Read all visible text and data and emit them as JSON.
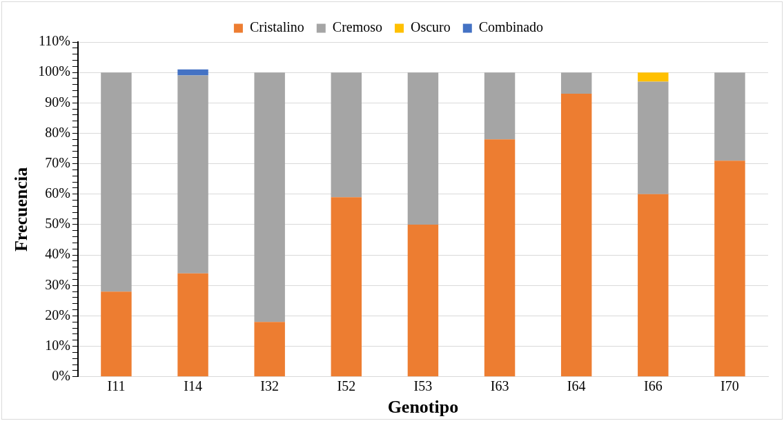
{
  "chart_data": {
    "type": "bar",
    "stacked": true,
    "xlabel": "Genotipo",
    "ylabel": "Frecuencia",
    "categories": [
      "I11",
      "I14",
      "I32",
      "I52",
      "I53",
      "I63",
      "I64",
      "I66",
      "I70"
    ],
    "series": [
      {
        "name": "Cristalino",
        "color": "#ed7d31",
        "values": [
          28,
          34,
          18,
          59,
          50,
          78,
          93,
          60,
          71
        ]
      },
      {
        "name": "Cremoso",
        "color": "#a5a5a5",
        "values": [
          72,
          65,
          82,
          41,
          50,
          22,
          7,
          37,
          29
        ]
      },
      {
        "name": "Oscuro",
        "color": "#ffc000",
        "values": [
          0,
          0,
          0,
          0,
          0,
          0,
          0,
          3,
          0
        ]
      },
      {
        "name": "Combinado",
        "color": "#4472c4",
        "values": [
          0,
          2,
          0,
          0,
          0,
          0,
          0,
          0,
          0
        ]
      }
    ],
    "ylim": [
      0,
      110
    ],
    "yticks": [
      {
        "value": 0,
        "label": "0%"
      },
      {
        "value": 2,
        "label": null
      },
      {
        "value": 4,
        "label": null
      },
      {
        "value": 6,
        "label": null
      },
      {
        "value": 8,
        "label": null
      },
      {
        "value": 10,
        "label": "10%"
      },
      {
        "value": 12,
        "label": null
      },
      {
        "value": 14,
        "label": null
      },
      {
        "value": 16,
        "label": null
      },
      {
        "value": 18,
        "label": null
      },
      {
        "value": 20,
        "label": "20%"
      },
      {
        "value": 22,
        "label": null
      },
      {
        "value": 24,
        "label": null
      },
      {
        "value": 26,
        "label": null
      },
      {
        "value": 28,
        "label": null
      },
      {
        "value": 30,
        "label": "30%"
      },
      {
        "value": 32,
        "label": null
      },
      {
        "value": 34,
        "label": null
      },
      {
        "value": 36,
        "label": null
      },
      {
        "value": 38,
        "label": null
      },
      {
        "value": 40,
        "label": "40%"
      },
      {
        "value": 42,
        "label": null
      },
      {
        "value": 44,
        "label": null
      },
      {
        "value": 46,
        "label": null
      },
      {
        "value": 48,
        "label": null
      },
      {
        "value": 50,
        "label": "50%"
      },
      {
        "value": 52,
        "label": null
      },
      {
        "value": 54,
        "label": null
      },
      {
        "value": 56,
        "label": null
      },
      {
        "value": 58,
        "label": null
      },
      {
        "value": 60,
        "label": "60%"
      },
      {
        "value": 62,
        "label": null
      },
      {
        "value": 64,
        "label": null
      },
      {
        "value": 66,
        "label": null
      },
      {
        "value": 68,
        "label": null
      },
      {
        "value": 70,
        "label": "70%"
      },
      {
        "value": 72,
        "label": null
      },
      {
        "value": 74,
        "label": null
      },
      {
        "value": 76,
        "label": null
      },
      {
        "value": 78,
        "label": null
      },
      {
        "value": 80,
        "label": "80%"
      },
      {
        "value": 82,
        "label": null
      },
      {
        "value": 84,
        "label": null
      },
      {
        "value": 86,
        "label": null
      },
      {
        "value": 88,
        "label": null
      },
      {
        "value": 90,
        "label": "90%"
      },
      {
        "value": 92,
        "label": null
      },
      {
        "value": 94,
        "label": null
      },
      {
        "value": 96,
        "label": null
      },
      {
        "value": 98,
        "label": null
      },
      {
        "value": 100,
        "label": "100%"
      },
      {
        "value": 102,
        "label": null
      },
      {
        "value": 104,
        "label": null
      },
      {
        "value": 106,
        "label": null
      },
      {
        "value": 108,
        "label": null
      },
      {
        "value": 110,
        "label": "110%"
      }
    ],
    "grid": "y",
    "legend": "top"
  }
}
